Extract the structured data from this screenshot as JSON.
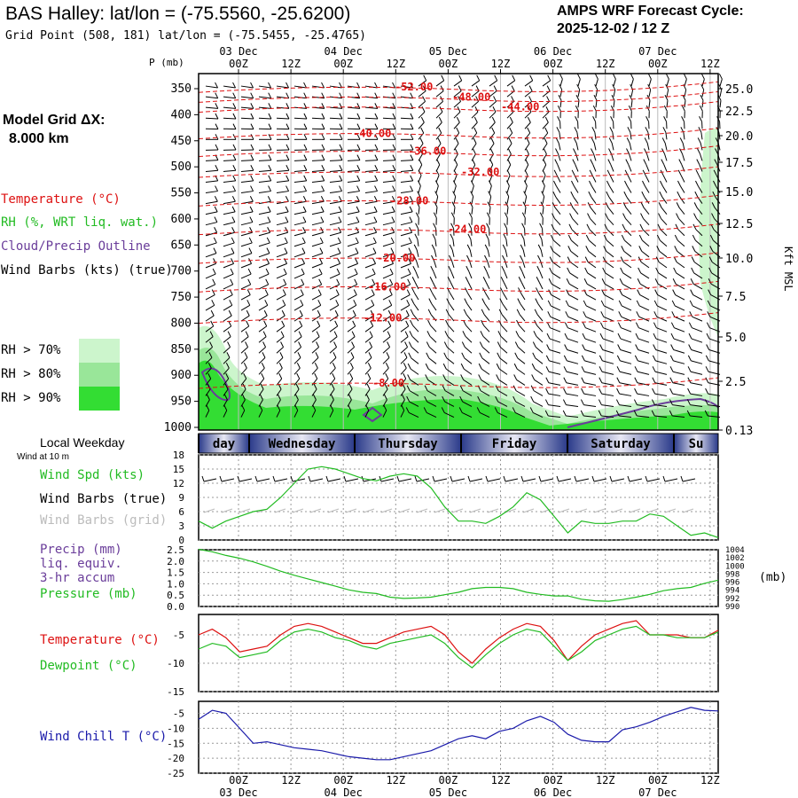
{
  "header": {
    "title": "BAS Halley:  lat/lon = (-75.5560, -25.6200)",
    "grid_point": "Grid Point (508, 181) lat/lon = (-75.5455, -25.4765)",
    "cycle_line1": "AMPS WRF Forecast Cycle:",
    "cycle_line2": "2025-12-02 / 12  Z"
  },
  "model_grid": {
    "line1": "Model Grid ΔX:",
    "line2": "8.000 km"
  },
  "legend": {
    "temperature": "Temperature (°C)",
    "rh": "RH (%, WRT liq. wat.)",
    "cloud": "Cloud/Precip Outline",
    "wind": "Wind Barbs (kts) (true)",
    "rh70": "RH > 70%",
    "rh80": "RH > 80%",
    "rh90": "RH > 90%"
  },
  "colors": {
    "temp": "#dd1111",
    "rh70": "#ccf5cc",
    "rh80": "#99e699",
    "rh90": "#33dd33",
    "cloud": "#6a3d9a",
    "green": "#22bb22",
    "blue": "#1a1aaa"
  },
  "time_axis": {
    "labels": [
      "00Z",
      "12Z",
      "00Z",
      "12Z",
      "00Z",
      "12Z",
      "00Z",
      "12Z",
      "00Z",
      "12Z"
    ],
    "dates": [
      "03 Dec",
      "04 Dec",
      "05 Dec",
      "06 Dec",
      "07 Dec"
    ]
  },
  "weekdays": [
    "day",
    "Wednesday",
    "Thursday",
    "Friday",
    "Saturday",
    "Su"
  ],
  "local_weekday": "Local Weekday",
  "wind_at": "Wind at 10 m",
  "chart_data": [
    {
      "type": "heatmap",
      "name": "cross-section",
      "ylabel": "P (mb)",
      "y2label": "Kft MSL",
      "pressure_ticks": [
        "350",
        "400",
        "450",
        "500",
        "550",
        "600",
        "650",
        "700",
        "750",
        "800",
        "850",
        "900",
        "950",
        "1000"
      ],
      "kft_ticks": [
        "25.0",
        "22.5",
        "20.0",
        "17.5",
        "15.0",
        "12.5",
        "10.0",
        "7.5",
        "5.0",
        "2.5",
        "0.13"
      ],
      "isotherms": [
        {
          "label": "-52.00",
          "p": 347
        },
        {
          "label": "-48.00",
          "p": 366
        },
        {
          "label": "-44.00",
          "p": 385
        },
        {
          "label": "-40.00",
          "p": 436
        },
        {
          "label": "-36.00",
          "p": 470
        },
        {
          "label": "-32.00",
          "p": 510
        },
        {
          "label": "-28.00",
          "p": 565
        },
        {
          "label": "-24.00",
          "p": 620
        },
        {
          "label": "-20.00",
          "p": 675
        },
        {
          "label": "-16.00",
          "p": 730
        },
        {
          "label": "-12.00",
          "p": 790
        },
        {
          "label": "-8.00",
          "p": 915
        }
      ]
    },
    {
      "type": "line",
      "name": "surface-wind",
      "yticks": [
        "0",
        "3",
        "6",
        "9",
        "12",
        "15",
        "18"
      ],
      "ylim": [
        0,
        18
      ],
      "legend": [
        "Wind Spd (kts)",
        "Wind Barbs (true)",
        "Wind Barbs (grid)"
      ],
      "values": [
        4,
        2.5,
        4,
        5,
        6,
        6.5,
        9,
        12,
        15,
        15.5,
        15,
        14,
        13,
        12.5,
        13.5,
        14,
        13.5,
        11,
        7,
        4,
        4,
        3.5,
        5,
        7,
        10,
        8.5,
        5,
        1.5,
        4,
        3.5,
        3.5,
        4,
        4,
        5.5,
        5,
        3,
        1,
        1.5,
        0.5
      ]
    },
    {
      "type": "line",
      "name": "precip-pressure",
      "yticks": [
        "0.0",
        "0.5",
        "1.0",
        "1.5",
        "2.0",
        "2.5"
      ],
      "ylim": [
        0,
        2.5
      ],
      "y2ticks": [
        "1004",
        "1002",
        "1000",
        "998",
        "996",
        "994",
        "992",
        "990"
      ],
      "y2lim": [
        990,
        1004
      ],
      "y2label": "(mb)",
      "legend": [
        "Precip (mm)",
        "liq. equiv.",
        "3-hr accum",
        "Pressure (mb)"
      ],
      "pressure": [
        1004.1,
        1003.5,
        1002.6,
        1001.9,
        1001.0,
        999.9,
        998.7,
        997.7,
        996.8,
        995.9,
        995.0,
        994.1,
        993.5,
        993.2,
        992.3,
        992.0,
        992.1,
        992.3,
        992.9,
        993.5,
        994.4,
        994.7,
        994.7,
        994.4,
        993.5,
        993.0,
        992.6,
        992.6,
        991.8,
        991.4,
        991.3,
        991.7,
        992.3,
        993.0,
        993.9,
        994.4,
        994.7,
        995.7,
        996.5
      ]
    },
    {
      "type": "line",
      "name": "temp-dewpoint",
      "yticks": [
        "-5",
        "-10",
        "-15"
      ],
      "ylim": [
        -15,
        -1.4
      ],
      "legend": [
        "Temperature (°C)",
        "Dewpoint (°C)"
      ],
      "series": [
        {
          "name": "Temperature (°C)",
          "values": [
            -5,
            -4,
            -5.5,
            -8,
            -7.5,
            -7,
            -5,
            -3.5,
            -3,
            -3.5,
            -4.5,
            -5.5,
            -6.5,
            -6.5,
            -5.5,
            -4.5,
            -4,
            -3.5,
            -5,
            -8,
            -10,
            -7.5,
            -5.5,
            -4,
            -3,
            -3.5,
            -6,
            -9.5,
            -7,
            -5,
            -4,
            -3,
            -2.5,
            -5,
            -5,
            -5,
            -5.5,
            -5.5,
            -4.2
          ]
        },
        {
          "name": "Dewpoint (°C)",
          "values": [
            -7.5,
            -6.5,
            -7,
            -9,
            -8.5,
            -8,
            -6,
            -4.5,
            -4,
            -4.5,
            -5.5,
            -6,
            -7,
            -7.5,
            -6.5,
            -6,
            -5.5,
            -5,
            -6.5,
            -9,
            -10.8,
            -8.5,
            -6.5,
            -5,
            -4,
            -4.5,
            -7,
            -9.5,
            -8,
            -6,
            -5,
            -4,
            -3.5,
            -5,
            -5,
            -5.5,
            -5.5,
            -5.5,
            -4.5
          ]
        }
      ]
    },
    {
      "type": "line",
      "name": "wind-chill",
      "yticks": [
        "-5",
        "-10",
        "-15",
        "-20",
        "-25"
      ],
      "ylim": [
        -25,
        -1
      ],
      "legend": [
        "Wind Chill T (°C)"
      ],
      "values": [
        -7,
        -4,
        -5,
        -10,
        -15,
        -14.5,
        -15.5,
        -16.5,
        -17,
        -17.5,
        -18.5,
        -19.5,
        -20,
        -20.5,
        -20.5,
        -19.5,
        -18.5,
        -17.5,
        -15.5,
        -13.5,
        -12.5,
        -13.5,
        -11,
        -10,
        -7.5,
        -6,
        -8,
        -12,
        -14,
        -14.5,
        -14.5,
        -10.5,
        -9.5,
        -8,
        -6,
        -4.5,
        -3,
        -4,
        -4.2
      ]
    }
  ]
}
